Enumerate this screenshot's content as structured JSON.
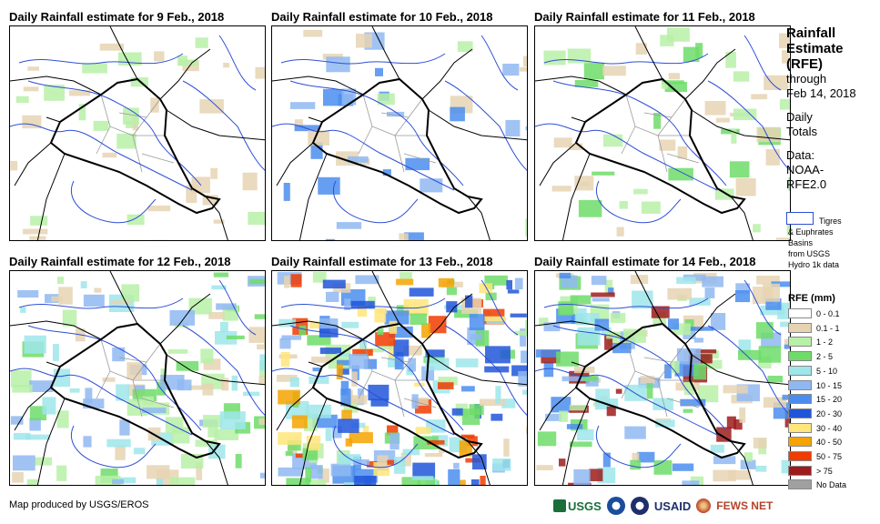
{
  "panels": [
    {
      "title": "Daily Rainfall estimate for 9 Feb., 2018"
    },
    {
      "title": "Daily Rainfall estimate for 10 Feb., 2018"
    },
    {
      "title": "Daily Rainfall estimate for 11 Feb., 2018"
    },
    {
      "title": "Daily Rainfall estimate for 12 Feb., 2018"
    },
    {
      "title": "Daily Rainfall estimate for 13 Feb., 2018"
    },
    {
      "title": "Daily Rainfall estimate for 14 Feb., 2018"
    }
  ],
  "legend": {
    "title_lines": [
      "Rainfall",
      "Estimate",
      "(RFE)"
    ],
    "through": "through",
    "date": "Feb 14, 2018",
    "daily": "Daily",
    "totals": "Totals",
    "data_label": "Data:",
    "data_source_1": "NOAA-",
    "data_source_2": "RFE2.0",
    "basin_lines": [
      "Tigres",
      "& Euphrates",
      "Basins",
      "from USGS",
      "Hydro 1k data"
    ],
    "rfe_title": "RFE (mm)",
    "classes": [
      {
        "label": "0 - 0.1",
        "color": "#ffffff"
      },
      {
        "label": "0.1 - 1",
        "color": "#e6d3b3"
      },
      {
        "label": "1 - 2",
        "color": "#b9f0a8"
      },
      {
        "label": "2 - 5",
        "color": "#6fdc6a"
      },
      {
        "label": "5 - 10",
        "color": "#9ee6ea"
      },
      {
        "label": "10 - 15",
        "color": "#8fb8f2"
      },
      {
        "label": "15 - 20",
        "color": "#4b8def"
      },
      {
        "label": "20 - 30",
        "color": "#2156d9"
      },
      {
        "label": "30 - 40",
        "color": "#ffe57a"
      },
      {
        "label": "40 - 50",
        "color": "#f5a300"
      },
      {
        "label": "50 - 75",
        "color": "#f03c00"
      },
      {
        "label": "> 75",
        "color": "#9e1c1c"
      },
      {
        "label": "No Data",
        "color": "#a0a0a0"
      }
    ]
  },
  "footer": "Map produced by USGS/EROS",
  "logos": {
    "usgs": "USGS",
    "usaid": "USAID",
    "fews": "FEWS NET"
  }
}
